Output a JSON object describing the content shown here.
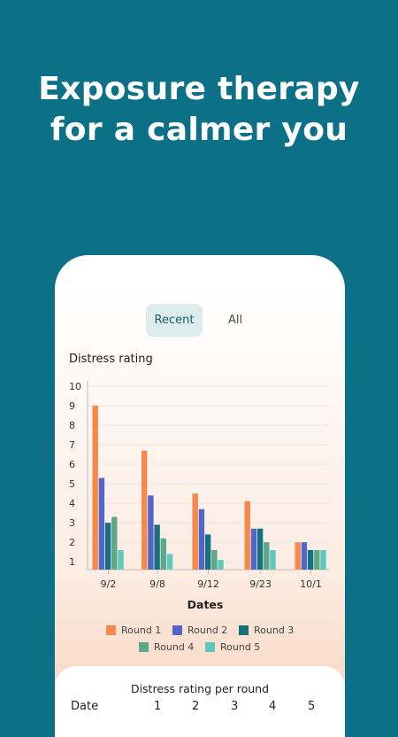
{
  "headline": {
    "line1": "Exposure therapy",
    "line2": "for a calmer you"
  },
  "tabs": {
    "recent": "Recent",
    "all": "All"
  },
  "chart_title": "Distress rating",
  "chart_data": {
    "type": "bar",
    "categories": [
      "9/2",
      "9/8",
      "9/12",
      "9/23",
      "10/1"
    ],
    "series": [
      {
        "name": "Round 1",
        "color": "#f5894a",
        "values": [
          9,
          6.7,
          4.5,
          4.1,
          2
        ]
      },
      {
        "name": "Round 2",
        "color": "#5265c8",
        "values": [
          5.3,
          4.4,
          3.7,
          2.7,
          2
        ]
      },
      {
        "name": "Round 3",
        "color": "#17707f",
        "values": [
          3,
          2.9,
          2.4,
          2.7,
          1.6
        ]
      },
      {
        "name": "Round 4",
        "color": "#5da889",
        "values": [
          3.3,
          2.2,
          1.6,
          2,
          1.6
        ]
      },
      {
        "name": "Round 5",
        "color": "#5fc8bd",
        "values": [
          1.6,
          1.4,
          1.1,
          1.6,
          1.6
        ]
      }
    ],
    "yticks": [
      1,
      2,
      3,
      4,
      5,
      6,
      7,
      8,
      9,
      10
    ],
    "ylim": [
      0.6,
      10
    ],
    "xlabel": "Dates",
    "ylabel": "Distress rating",
    "grid": true,
    "legend": "bottom"
  },
  "table": {
    "title": "Distress rating per round",
    "date_header": "Date",
    "round_headers": [
      "1",
      "2",
      "3",
      "4",
      "5"
    ]
  }
}
